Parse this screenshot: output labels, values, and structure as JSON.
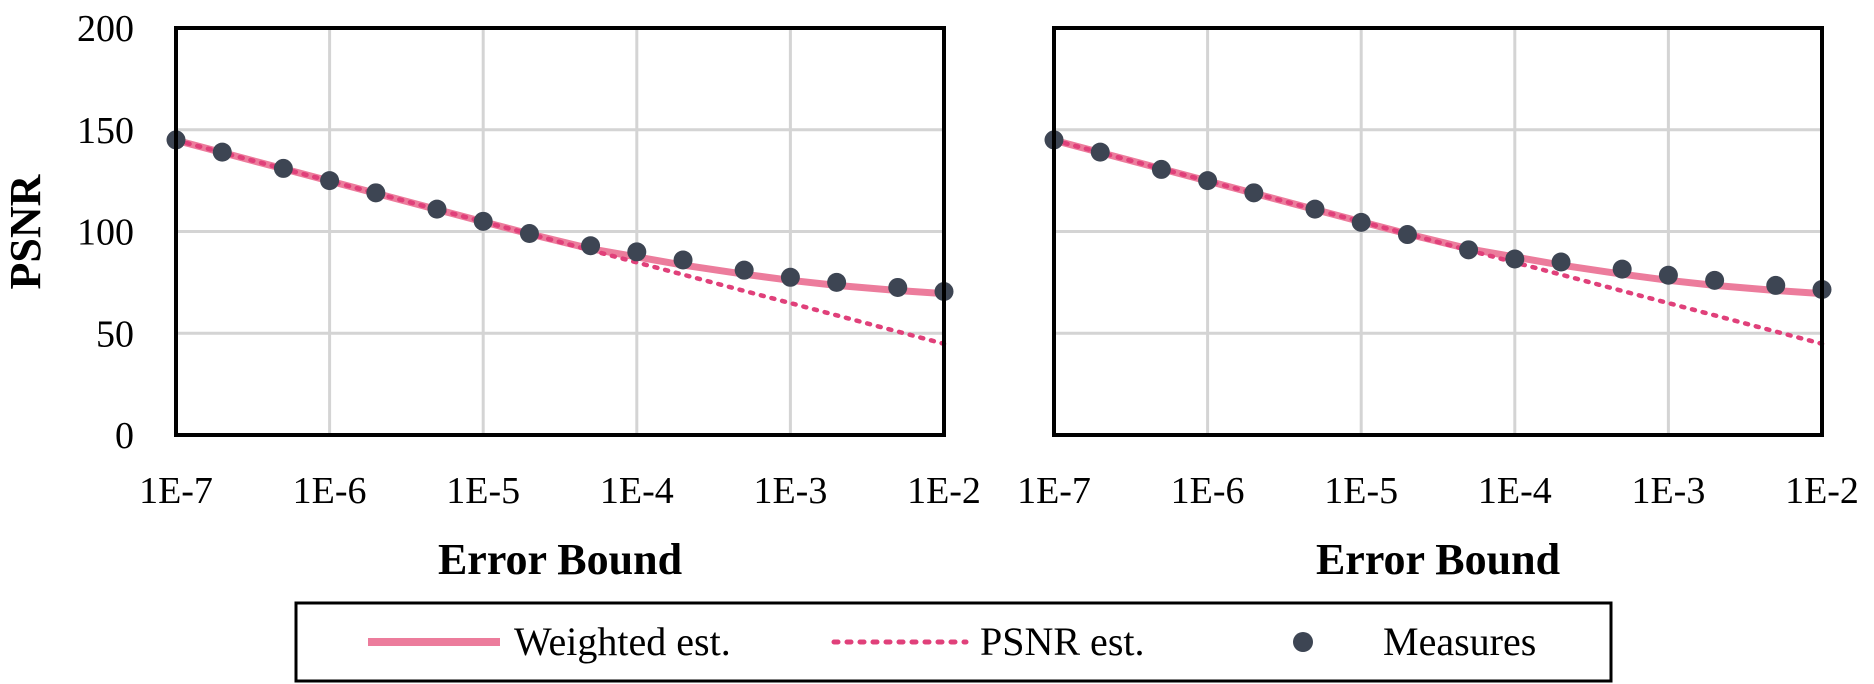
{
  "chart_data": [
    {
      "type": "line",
      "x_scale": "log",
      "x": [
        1e-07,
        2e-07,
        5e-07,
        1e-06,
        2e-06,
        5e-06,
        1e-05,
        2e-05,
        5e-05,
        0.0001,
        0.0002,
        0.0005,
        0.001,
        0.002,
        0.005,
        0.01
      ],
      "x_ticks": [
        "1E-7",
        "1E-6",
        "1E-5",
        "1E-4",
        "1E-3",
        "1E-2"
      ],
      "y_ticks": [
        "0",
        "50",
        "100",
        "150",
        "200"
      ],
      "xlim": [
        1e-07,
        0.01
      ],
      "ylim": [
        0,
        200
      ],
      "xlabel": "Error Bound",
      "ylabel": "PSNR",
      "grid": true,
      "series": [
        {
          "name": "Weighted est.",
          "style": "solid",
          "color": "#ec7c9c",
          "values": [
            144.8,
            138.8,
            130.8,
            124.8,
            118.8,
            110.8,
            104.8,
            98.8,
            91.5,
            87.5,
            83.5,
            79.0,
            76.0,
            73.5,
            71.0,
            69.5
          ]
        },
        {
          "name": "PSNR est.",
          "style": "dotted",
          "color": "#e0407a",
          "values": [
            144.8,
            138.8,
            130.8,
            124.8,
            118.8,
            110.8,
            104.8,
            98.8,
            90.8,
            84.8,
            78.8,
            70.8,
            64.8,
            58.8,
            50.8,
            44.8
          ]
        },
        {
          "name": "Measures",
          "style": "markers",
          "color": "#3d4553",
          "values": [
            145,
            139,
            131,
            125,
            119,
            111,
            105,
            99,
            93,
            90,
            86,
            81,
            77.5,
            75,
            72.5,
            70.5
          ]
        }
      ]
    },
    {
      "type": "line",
      "x_scale": "log",
      "x": [
        1e-07,
        2e-07,
        5e-07,
        1e-06,
        2e-06,
        5e-06,
        1e-05,
        2e-05,
        5e-05,
        0.0001,
        0.0002,
        0.0005,
        0.001,
        0.002,
        0.005,
        0.01
      ],
      "x_ticks": [
        "1E-7",
        "1E-6",
        "1E-5",
        "1E-4",
        "1E-3",
        "1E-2"
      ],
      "xlim": [
        1e-07,
        0.01
      ],
      "ylim": [
        0,
        200
      ],
      "xlabel": "Error Bound",
      "grid": true,
      "series": [
        {
          "name": "Weighted est.",
          "style": "solid",
          "color": "#ec7c9c",
          "values": [
            144.8,
            138.8,
            130.8,
            124.8,
            118.8,
            110.8,
            104.8,
            98.8,
            91.5,
            87.5,
            83.5,
            79.0,
            76.0,
            73.5,
            71.0,
            69.5
          ]
        },
        {
          "name": "PSNR est.",
          "style": "dotted",
          "color": "#e0407a",
          "values": [
            144.8,
            138.8,
            130.8,
            124.8,
            118.8,
            110.8,
            104.8,
            98.8,
            90.8,
            84.8,
            78.8,
            70.8,
            64.8,
            58.8,
            50.8,
            44.8
          ]
        },
        {
          "name": "Measures",
          "style": "markers",
          "color": "#3d4553",
          "values": [
            145,
            139,
            130.5,
            125,
            119,
            111,
            104.5,
            98.5,
            91,
            86.5,
            85,
            81.5,
            78.5,
            76,
            73.5,
            71.5
          ]
        }
      ]
    }
  ],
  "legend": {
    "placement": "bottom",
    "items": [
      "Weighted est.",
      "PSNR est.",
      "Measures"
    ]
  }
}
